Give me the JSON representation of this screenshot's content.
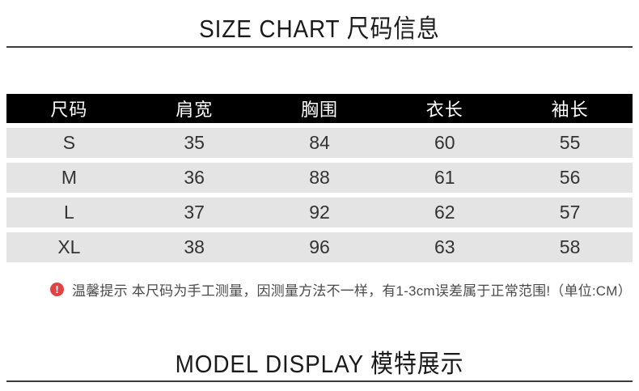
{
  "sections": {
    "size_chart": {
      "title": "SIZE CHART 尺码信息"
    },
    "model_display": {
      "title": "MODEL DISPLAY 模特展示"
    }
  },
  "size_table": {
    "headers": [
      "尺码",
      "肩宽",
      "胸围",
      "衣长",
      "袖长"
    ],
    "rows": [
      [
        "S",
        "35",
        "84",
        "60",
        "55"
      ],
      [
        "M",
        "36",
        "88",
        "61",
        "56"
      ],
      [
        "L",
        "37",
        "92",
        "62",
        "57"
      ],
      [
        "XL",
        "38",
        "96",
        "63",
        "58"
      ]
    ]
  },
  "note": {
    "icon_glyph": "!",
    "text": "温馨提示 本尺码为手工测量，因测量方法不一样，有1-3cm误差属于正常范围!（单位:CM）"
  },
  "colors": {
    "header_bg": "#000000",
    "header_text": "#ffffff",
    "row_bg": "#e4e4e4",
    "cell_text": "#333333",
    "rule": "#3b3b3b",
    "warning_red": "#e04343",
    "note_text": "#4b4b4b"
  }
}
